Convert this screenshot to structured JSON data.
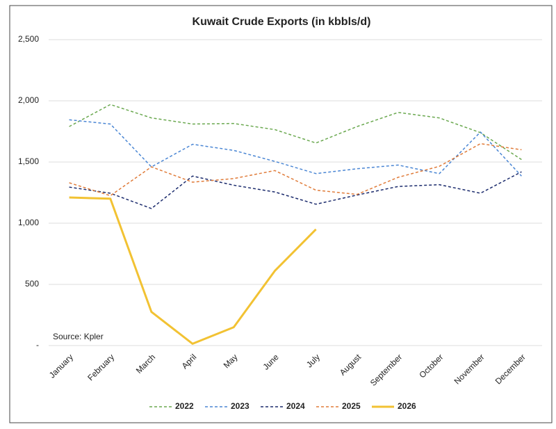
{
  "chart_data": {
    "type": "line",
    "title": "Kuwait Crude Exports (in kbbls/d)",
    "annotation": "Source: Kpler",
    "categories": [
      "January",
      "February",
      "March",
      "April",
      "May",
      "June",
      "July",
      "August",
      "September",
      "October",
      "November",
      "December"
    ],
    "series": [
      {
        "name": "2022",
        "color": "#6aa84f",
        "style": "dashed",
        "values": [
          1790,
          1970,
          1860,
          1810,
          1815,
          1765,
          1655,
          1790,
          1905,
          1860,
          1740,
          1520
        ]
      },
      {
        "name": "2023",
        "color": "#4a86d4",
        "style": "dashed",
        "values": [
          1845,
          1810,
          1460,
          1645,
          1595,
          1505,
          1405,
          1445,
          1475,
          1405,
          1745,
          1385
        ]
      },
      {
        "name": "2024",
        "color": "#1a2a6c",
        "style": "dashed",
        "values": [
          1295,
          1245,
          1120,
          1385,
          1310,
          1255,
          1155,
          1230,
          1300,
          1315,
          1245,
          1420
        ]
      },
      {
        "name": "2025",
        "color": "#e07b39",
        "style": "dashed",
        "values": [
          1330,
          1225,
          1460,
          1335,
          1365,
          1430,
          1270,
          1235,
          1375,
          1465,
          1650,
          1600
        ]
      },
      {
        "name": "2026",
        "color": "#f2c233",
        "style": "solid",
        "values": [
          1210,
          1200,
          275,
          15,
          150,
          610,
          950,
          null,
          null,
          null,
          null,
          null
        ]
      }
    ],
    "ylim": [
      0,
      2500
    ],
    "yticks": [
      {
        "value": 0,
        "label": "-"
      },
      500,
      {
        "value": 1000,
        "label": "1,000"
      },
      {
        "value": 1500,
        "label": "1,500"
      },
      {
        "value": 2000,
        "label": "2,000"
      },
      {
        "value": 2500,
        "label": "2,500"
      }
    ],
    "grid": true,
    "legend": "bottom"
  }
}
